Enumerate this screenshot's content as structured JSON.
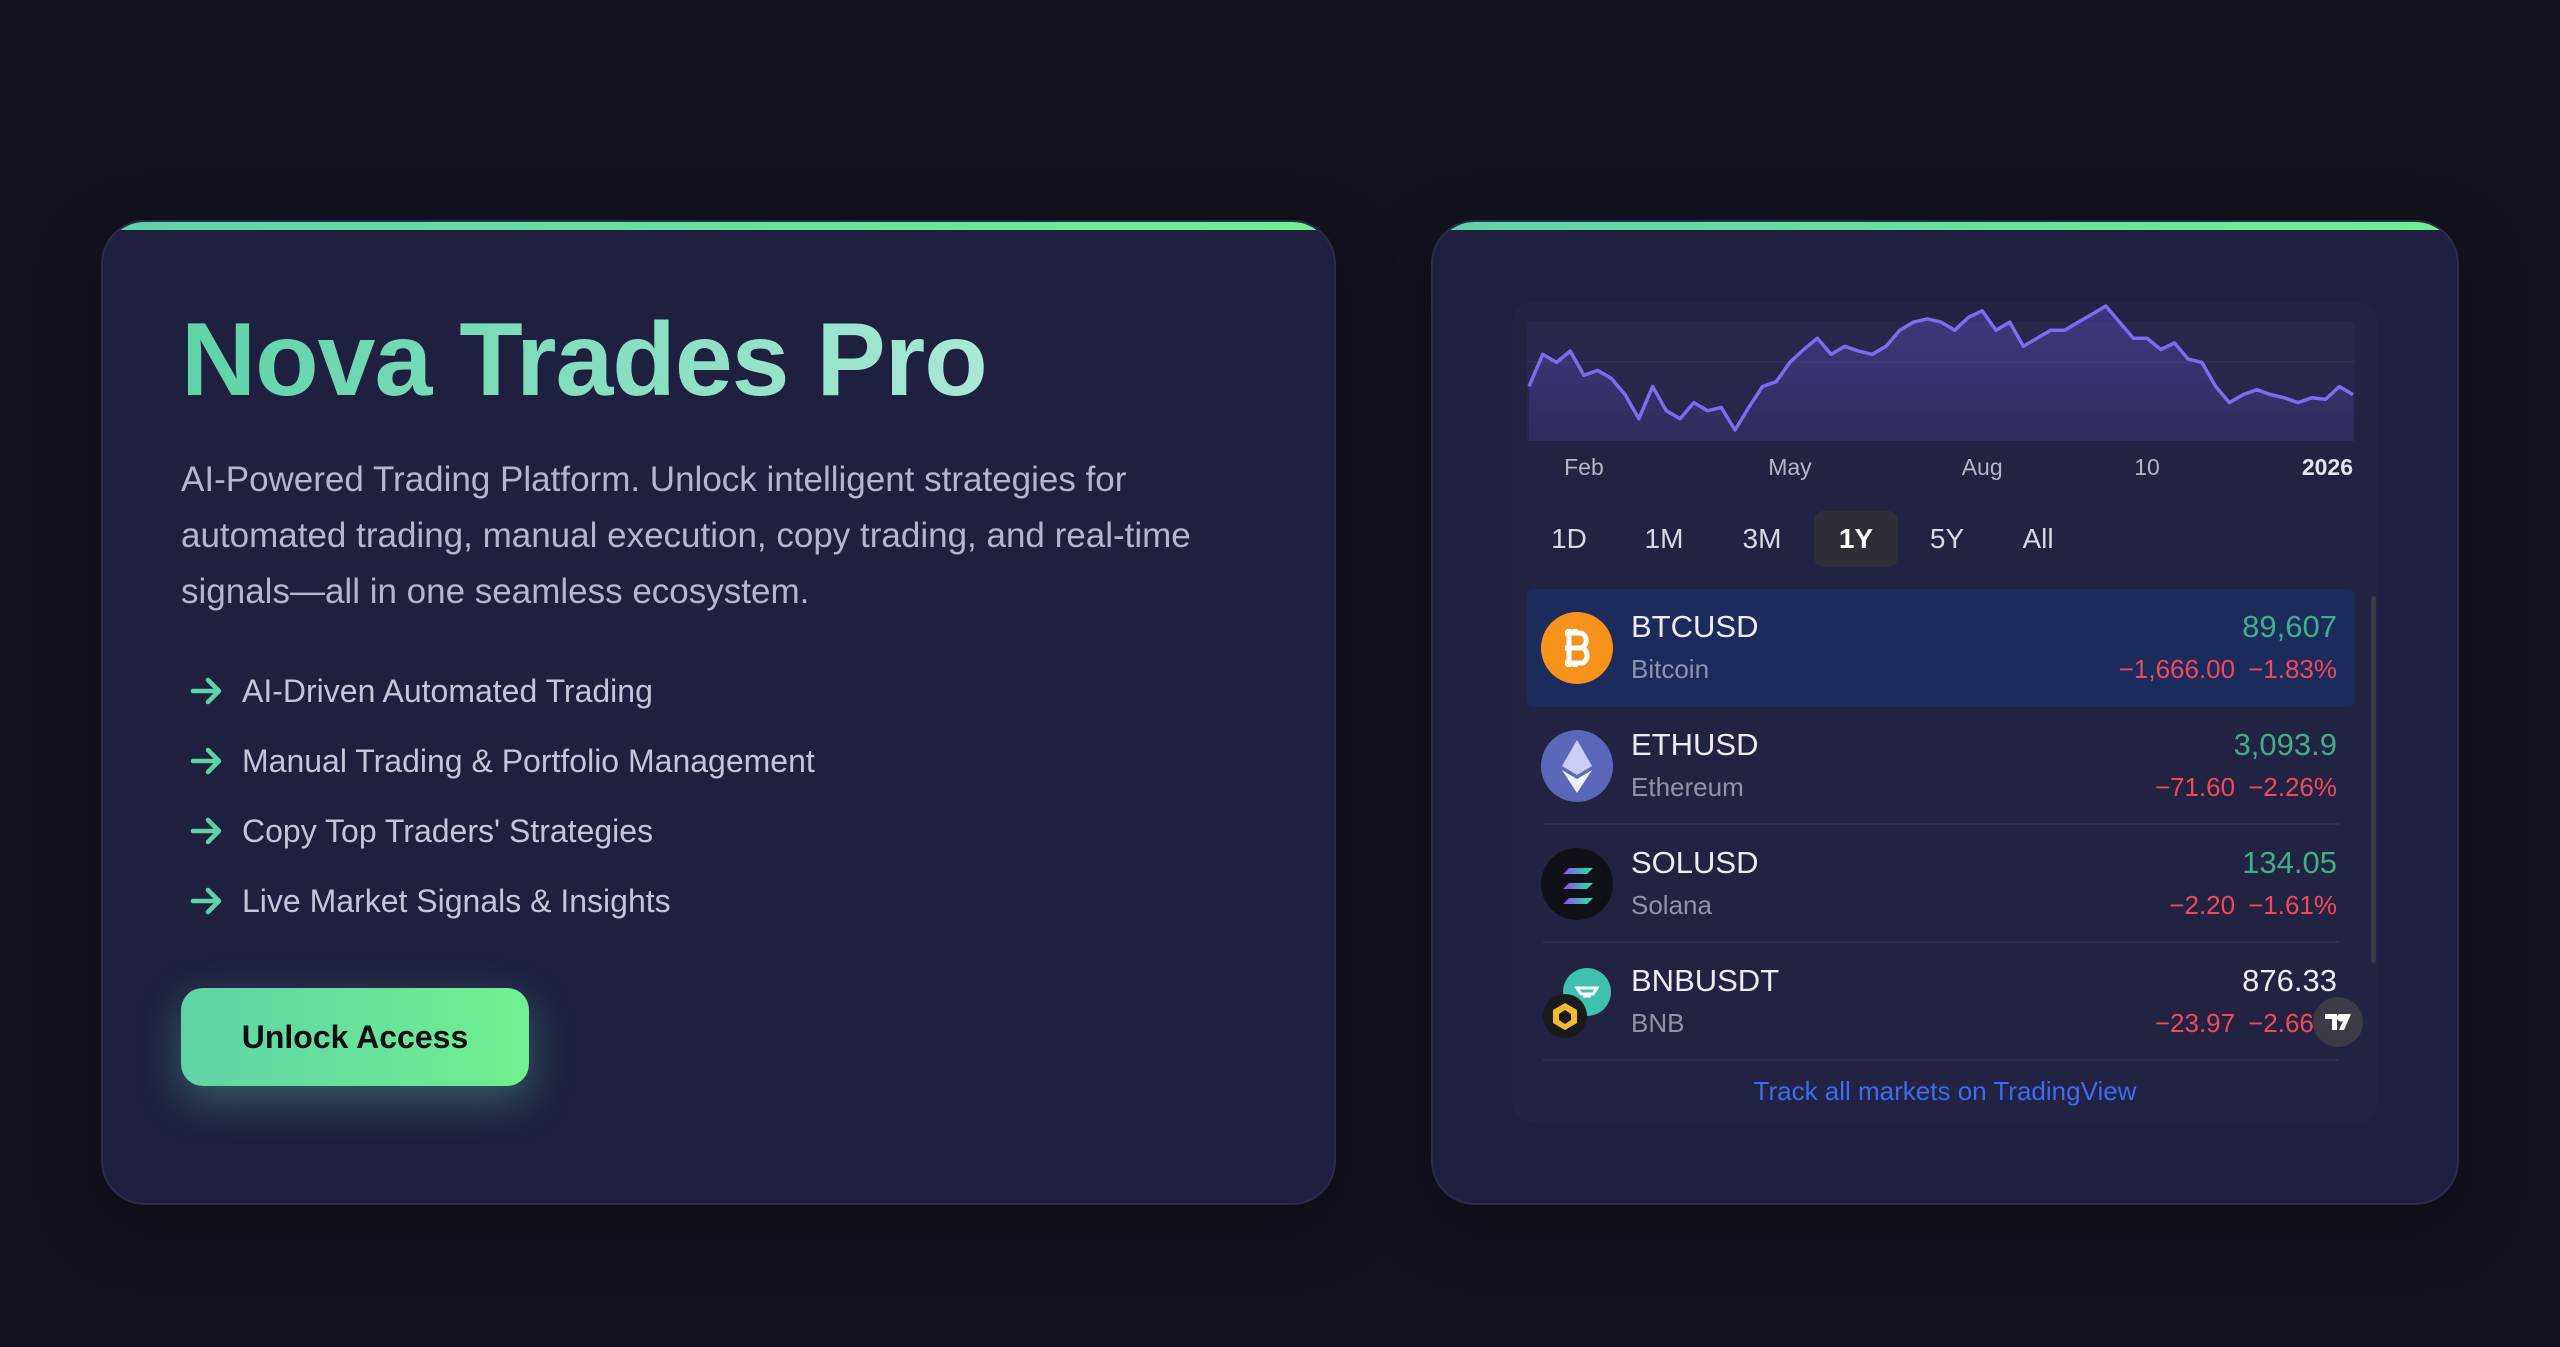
{
  "hero": {
    "title": "Nova Trades Pro",
    "description": "AI-Powered Trading Platform. Unlock intelligent strategies for automated trading, manual execution, copy trading, and real-time signals—all in one seamless ecosystem.",
    "features": [
      "AI-Driven Automated Trading",
      "Manual Trading & Portfolio Management",
      "Copy Top Traders' Strategies",
      "Live Market Signals & Insights"
    ],
    "cta": "Unlock Access"
  },
  "chart_data": {
    "type": "line",
    "color": "#7b6cf0",
    "values": [
      96,
      108,
      105,
      109.2,
      100.2,
      102,
      99,
      93,
      84,
      96,
      87,
      84,
      90,
      87,
      88.2,
      79.8,
      88.2,
      96,
      97.8,
      105,
      109.8,
      114,
      108,
      111,
      109.2,
      108,
      111,
      117,
      120,
      121.2,
      120,
      117,
      121.8,
      124.2,
      117,
      120,
      111,
      114,
      117,
      117,
      120,
      123,
      126,
      120,
      114,
      114,
      109.8,
      112.2,
      106.2,
      105,
      96,
      90,
      93,
      94.8,
      93,
      91.8,
      90,
      91.8,
      91.2,
      96,
      93
    ],
    "xticks": [
      {
        "value": 4,
        "label": "Feb"
      },
      {
        "value": 19,
        "label": "May"
      },
      {
        "value": 33,
        "label": "Aug"
      },
      {
        "value": 45,
        "label": "10"
      },
      {
        "value": 60,
        "label": "2026"
      }
    ]
  },
  "widget": {
    "ranges": [
      "1D",
      "1M",
      "3M",
      "1Y",
      "5Y",
      "All"
    ],
    "selected_range": "1Y",
    "rows": [
      {
        "symbol": "BTCUSD",
        "name": "Bitcoin",
        "price": "89,607",
        "change": "−1,666.00",
        "change_pct": "−1.83%",
        "price_color": "#3fae8a"
      },
      {
        "symbol": "ETHUSD",
        "name": "Ethereum",
        "price": "3,093.9",
        "change": "−71.60",
        "change_pct": "−2.26%",
        "price_color": "#3fae8a"
      },
      {
        "symbol": "SOLUSD",
        "name": "Solana",
        "price": "134.05",
        "change": "−2.20",
        "change_pct": "−1.61%",
        "price_color": "#3fae8a"
      },
      {
        "symbol": "BNBUSDT",
        "name": "BNB",
        "price": "876.33",
        "change": "−23.97",
        "change_pct": "−2.66%",
        "price_color": "#ececf2"
      }
    ],
    "footer_link": "Track all markets on TradingView"
  }
}
